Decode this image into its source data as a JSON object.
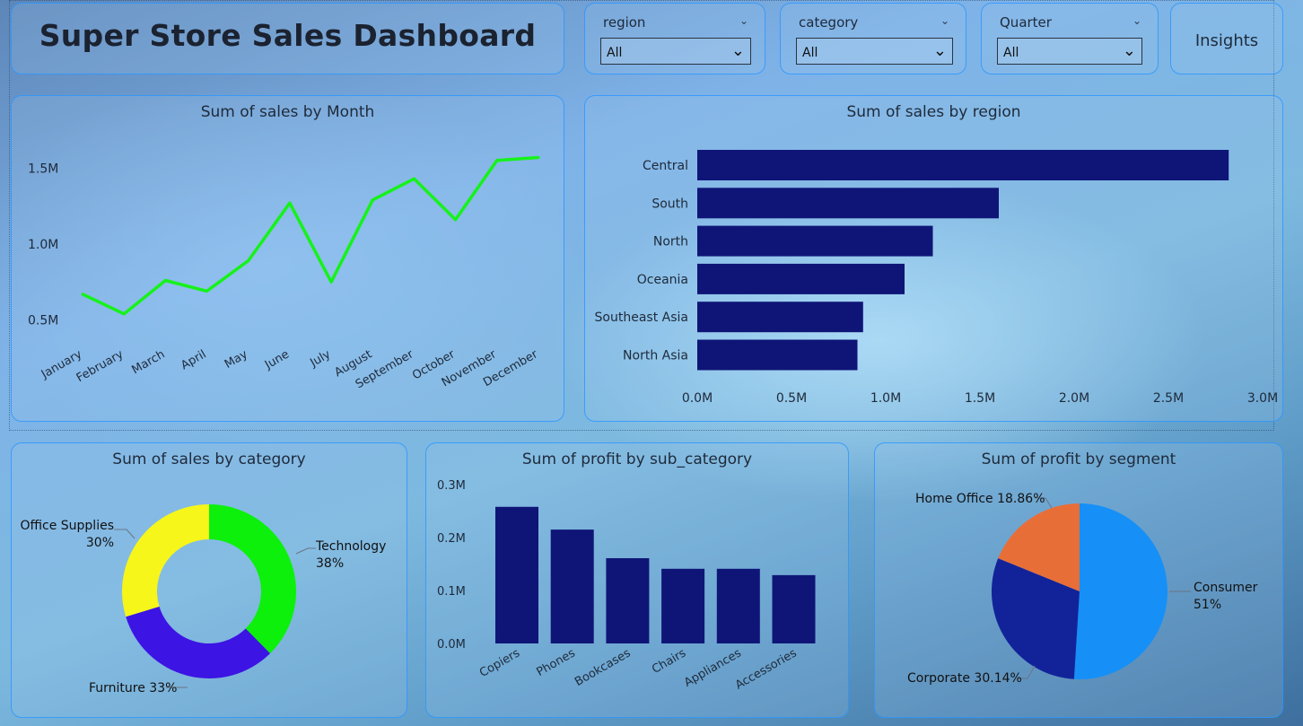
{
  "header": {
    "title": "Super Store Sales Dashboard"
  },
  "slicers": [
    {
      "label": "region",
      "value": "All"
    },
    {
      "label": "category",
      "value": "All"
    },
    {
      "label": "Quarter",
      "value": "All"
    }
  ],
  "insights_label": "Insights",
  "colors": {
    "bar": "#0f1577",
    "line": "#16f21a",
    "donut": [
      "#0cf00c",
      "#3c14e4",
      "#f6f61a"
    ],
    "pie": [
      "#1690f7",
      "#12239a",
      "#e86e38"
    ]
  },
  "chart_data": [
    {
      "type": "line",
      "title": "Sum of sales by Month",
      "x": [
        "January",
        "February",
        "March",
        "April",
        "May",
        "June",
        "July",
        "August",
        "September",
        "October",
        "November",
        "December"
      ],
      "values": [
        0.67,
        0.54,
        0.76,
        0.69,
        0.89,
        1.27,
        0.75,
        1.29,
        1.43,
        1.16,
        1.55,
        1.57
      ],
      "y_ticks": [
        "0.5M",
        "1.0M",
        "1.5M"
      ],
      "ylim": [
        0.45,
        1.62
      ]
    },
    {
      "type": "bar",
      "orientation": "horizontal",
      "title": "Sum of sales by region",
      "categories": [
        "Central",
        "South",
        "North",
        "Oceania",
        "Southeast Asia",
        "North Asia"
      ],
      "values": [
        2.82,
        1.6,
        1.25,
        1.1,
        0.88,
        0.85
      ],
      "x_ticks": [
        "0.0M",
        "0.5M",
        "1.0M",
        "1.5M",
        "2.0M",
        "2.5M",
        "3.0M"
      ],
      "xlim": [
        0,
        3.0
      ]
    },
    {
      "type": "pie",
      "donut": true,
      "title": "Sum of sales by category",
      "categories": [
        "Technology",
        "Furniture",
        "Office Supplies"
      ],
      "values": [
        38,
        33,
        30
      ],
      "labels": [
        {
          "line1": "Technology",
          "line2": "38%"
        },
        {
          "line1": "Furniture 33%",
          "line2": ""
        },
        {
          "line1": "Office Supplies",
          "line2": "30%"
        }
      ]
    },
    {
      "type": "bar",
      "title": "Sum of profit by sub_category",
      "categories": [
        "Copiers",
        "Phones",
        "Bookcases",
        "Chairs",
        "Appliances",
        "Accessories"
      ],
      "values": [
        0.258,
        0.215,
        0.161,
        0.141,
        0.141,
        0.129
      ],
      "y_ticks": [
        "0.0M",
        "0.1M",
        "0.2M",
        "0.3M"
      ],
      "ylim": [
        0,
        0.3
      ]
    },
    {
      "type": "pie",
      "title": "Sum of profit by segment",
      "categories": [
        "Consumer",
        "Corporate",
        "Home Office"
      ],
      "values": [
        51,
        30.14,
        18.86
      ],
      "labels": [
        {
          "line1": "Consumer",
          "line2": "51%"
        },
        {
          "line1": "Corporate 30.14%",
          "line2": ""
        },
        {
          "line1": "Home Office 18.86%",
          "line2": ""
        }
      ]
    }
  ]
}
